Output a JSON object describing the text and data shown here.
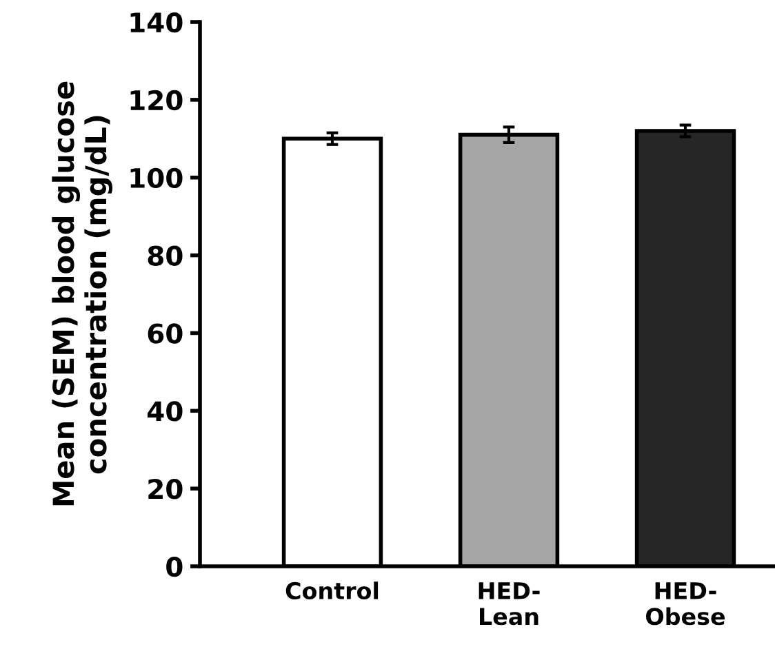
{
  "chart_data": {
    "type": "bar",
    "ylabel": "Mean (SEM) blood glucose\nconcentration (mg/dL)",
    "categories": [
      "Control",
      "HED-\nLean",
      "HED-\nObese"
    ],
    "values": [
      110,
      111,
      112
    ],
    "errors": [
      1.5,
      2,
      1.5
    ],
    "colors": [
      "#ffffff",
      "#a6a6a6",
      "#262626"
    ],
    "ylim": [
      0,
      140
    ],
    "yticks": [
      0,
      20,
      40,
      60,
      80,
      100,
      120,
      140
    ],
    "grid": false
  }
}
